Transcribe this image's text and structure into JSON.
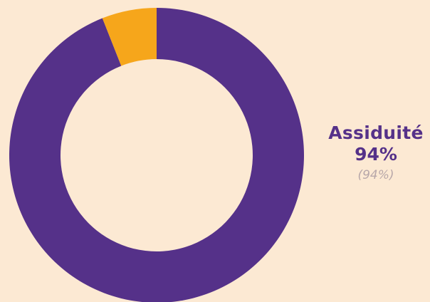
{
  "chart_data": {
    "type": "pie",
    "donut": true,
    "slices": [
      {
        "name": "Assiduité",
        "value": 94,
        "color": "#553189"
      },
      {
        "value": 6,
        "color": "#f6a61b"
      }
    ],
    "labels": [
      {
        "name": "Assiduité",
        "value_text": "94%",
        "sub_text": "(94%)"
      }
    ]
  }
}
